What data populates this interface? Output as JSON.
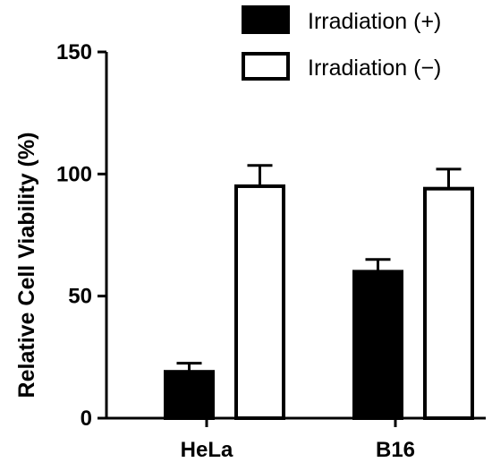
{
  "chart_data": {
    "type": "bar",
    "categories": [
      "HeLa",
      "B16"
    ],
    "series": [
      {
        "name": "Irradiation (+)",
        "values": [
          19,
          60
        ],
        "errors": [
          3.5,
          5
        ],
        "color": "#000000",
        "fill": "#000000"
      },
      {
        "name": "Irradiation (−)",
        "values": [
          95,
          94
        ],
        "errors": [
          8.5,
          8
        ],
        "color": "#000000",
        "fill": "#ffffff"
      }
    ],
    "ylabel": "Relative Cell Viability (%)",
    "xlabel": "",
    "ylim": [
      0,
      150
    ],
    "yticks": [
      0,
      50,
      100,
      150
    ],
    "grid": false,
    "legend": "top-right"
  }
}
